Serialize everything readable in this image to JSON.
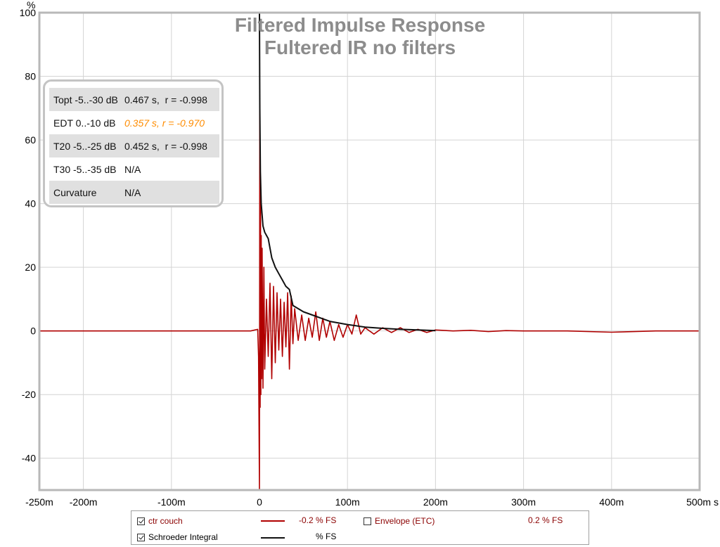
{
  "chart_data": {
    "type": "line",
    "title": "Filtered Impulse Response",
    "subtitle": "Fultered IR no filters",
    "ylabel": "%",
    "xlabel": "",
    "xlim": [
      -250,
      500
    ],
    "ylim": [
      -50,
      100
    ],
    "x_unit_label": "500m s",
    "x_ticks": [
      {
        "value": -250,
        "label": "-250m"
      },
      {
        "value": -200,
        "label": "-200m"
      },
      {
        "value": -100,
        "label": "-100m"
      },
      {
        "value": 0,
        "label": "0"
      },
      {
        "value": 100,
        "label": "100m"
      },
      {
        "value": 200,
        "label": "200m"
      },
      {
        "value": 300,
        "label": "300m"
      },
      {
        "value": 400,
        "label": "400m"
      }
    ],
    "y_ticks": [
      {
        "value": 100,
        "label": "100"
      },
      {
        "value": 80,
        "label": "80"
      },
      {
        "value": 60,
        "label": "60"
      },
      {
        "value": 40,
        "label": "40"
      },
      {
        "value": 20,
        "label": "20"
      },
      {
        "value": 0,
        "label": "0"
      },
      {
        "value": -20,
        "label": "-20"
      },
      {
        "value": -40,
        "label": "-40"
      }
    ],
    "grid": true,
    "series": [
      {
        "name": "ctr couch",
        "color": "#b00000",
        "x": [
          -250,
          -200,
          -150,
          -100,
          -50,
          -10,
          -2,
          -1,
          0,
          0.4,
          0.8,
          1.2,
          1.6,
          2.0,
          2.5,
          3,
          4,
          5,
          6,
          8,
          10,
          12,
          14,
          16,
          18,
          20,
          22,
          24,
          26,
          28,
          30,
          32,
          34,
          36,
          38,
          40,
          44,
          48,
          52,
          56,
          60,
          64,
          68,
          72,
          76,
          80,
          85,
          90,
          95,
          100,
          105,
          110,
          115,
          120,
          130,
          140,
          150,
          160,
          170,
          180,
          190,
          200,
          220,
          240,
          260,
          280,
          300,
          350,
          400,
          450,
          500
        ],
        "y": [
          0,
          0,
          0,
          0,
          0,
          0,
          0.5,
          -8,
          -50,
          71,
          -24,
          45,
          -20,
          30,
          -15,
          26,
          -18,
          20,
          -12,
          10,
          -8,
          15,
          -15,
          14,
          -10,
          12,
          -6,
          10,
          -8,
          9,
          -5,
          12,
          -12,
          11,
          -4,
          7,
          -3,
          5,
          -3,
          4,
          -2,
          6,
          -3,
          4,
          -2,
          3,
          -3,
          2,
          -2,
          2,
          -1,
          5,
          -1,
          1,
          -1,
          1,
          -0.5,
          1,
          -0.5,
          0.5,
          -0.5,
          0.3,
          0,
          0.2,
          -0.2,
          0.1,
          0,
          0,
          -0.4,
          0,
          0
        ]
      },
      {
        "name": "Schroeder Integral",
        "color": "#111111",
        "x": [
          0,
          0.4,
          1,
          2,
          4,
          6,
          8,
          10,
          14,
          18,
          22,
          26,
          30,
          34,
          38,
          44,
          50,
          60,
          70,
          80,
          90,
          100,
          110,
          120,
          130,
          140,
          160,
          180,
          200
        ],
        "y": [
          100,
          70,
          50,
          40,
          33,
          31,
          30,
          29,
          23,
          20,
          18,
          16,
          14,
          13,
          8,
          7,
          6,
          5,
          4,
          3,
          2.5,
          2,
          1.6,
          1.2,
          1,
          0.8,
          0.5,
          0.3,
          0.1
        ]
      }
    ]
  },
  "stats": {
    "rows": [
      {
        "label": "Topt -5..-30 dB",
        "value": "0.467 s,  r = -0.998"
      },
      {
        "label": "EDT  0..-10 dB",
        "value": "0.357 s, r = -0.970"
      },
      {
        "label": "T20 -5..-25 dB",
        "value": "0.452 s,  r = -0.998"
      },
      {
        "label": "T30 -5..-35 dB",
        "value": "N/A"
      },
      {
        "label": "Curvature",
        "value": "N/A"
      }
    ]
  },
  "legend": {
    "items": [
      {
        "label": "ctr couch",
        "checked": true,
        "value": "-0.2 % FS",
        "color": "#b00000"
      },
      {
        "label": "Envelope (ETC)",
        "checked": false,
        "value": "0.2 % FS",
        "color": ""
      },
      {
        "label": "Schroeder Integral",
        "checked": true,
        "value": "% FS",
        "color": "#111111"
      }
    ]
  }
}
